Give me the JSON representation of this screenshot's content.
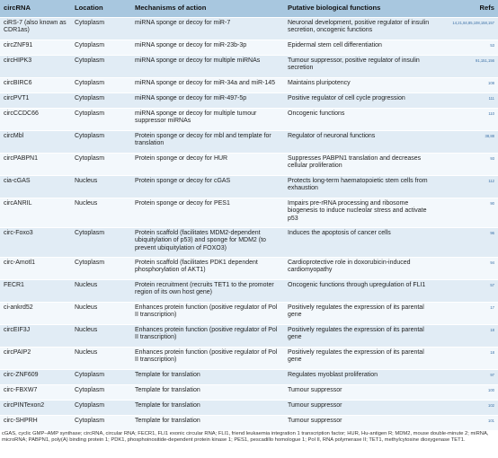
{
  "table": {
    "headers": {
      "circrna": "circRNA",
      "location": "Location",
      "mechanism": "Mechanisms of action",
      "function": "Putative biological functions",
      "refs": "Refs"
    },
    "rows": [
      {
        "circrna": "ciRS-7 (also known as CDR1as)",
        "location": "Cytoplasm",
        "mechanism": "miRNA sponge or decoy for miR-7",
        "function": "Neuronal development, positive regulator of insulin secretion, oncogenic functions",
        "refs": "14,21,84,85,108,158,157"
      },
      {
        "circrna": "circZNF91",
        "location": "Cytoplasm",
        "mechanism": "miRNA sponge or decoy for miR-23b-3p",
        "function": "Epidermal stem cell differentiation",
        "refs": "53"
      },
      {
        "circrna": "circHIPK3",
        "location": "Cytoplasm",
        "mechanism": "miRNA sponge or decoy for multiple miRNAs",
        "function": "Tumour suppressor, positive regulator of insulin secretion",
        "refs": "91,151,156"
      },
      {
        "circrna": "circBIRC6",
        "location": "Cytoplasm",
        "mechanism": "miRNA sponge or decoy for miR-34a and miR-145",
        "function": "Maintains pluripotency",
        "refs": "108"
      },
      {
        "circrna": "circPVT1",
        "location": "Cytoplasm",
        "mechanism": "miRNA sponge or decoy for miR-497-5p",
        "function": "Positive regulator of cell cycle progression",
        "refs": "111"
      },
      {
        "circrna": "circCCDC66",
        "location": "Cytoplasm",
        "mechanism": "miRNA sponge or decoy for multiple tumour suppressor miRNAs",
        "function": "Oncogenic functions",
        "refs": "110"
      },
      {
        "circrna": "circMbl",
        "location": "Cytoplasm",
        "mechanism": "Protein sponge or decoy for mbl and template for translation",
        "function": "Regulator of neuronal functions",
        "refs": "38,88"
      },
      {
        "circrna": "circPABPN1",
        "location": "Cytoplasm",
        "mechanism": "Protein sponge or decoy for HUR",
        "function": "Suppresses PABPN1 translation and decreases cellular proliferation",
        "refs": "93"
      },
      {
        "circrna": "cia-cGAS",
        "location": "Nucleus",
        "mechanism": "Protein sponge or decoy for cGAS",
        "function": "Protects long-term haematopoietic stem cells from exhaustion",
        "refs": "112"
      },
      {
        "circrna": "circANRIL",
        "location": "Nucleus",
        "mechanism": "Protein sponge or decoy for PES1",
        "function": "Impairs pre-rRNA processing and ribosome biogenesis to induce nucleolar stress and activate p53",
        "refs": "90"
      },
      {
        "circrna": "circ-Foxo3",
        "location": "Cytoplasm",
        "mechanism": "Protein scaffold (facilitates MDM2-dependent ubiquitylation of p53) and sponge for MDM2 (to prevent ubiquitylation of FOXO3)",
        "function": "Induces the apoptosis of cancer cells",
        "refs": "96"
      },
      {
        "circrna": "circ-Amotl1",
        "location": "Cytoplasm",
        "mechanism": "Protein scaffold (facilitates PDK1 dependent phosphorylation of AKT1)",
        "function": "Cardioprotective role in doxorubicin-induced cardiomyopathy",
        "refs": "94"
      },
      {
        "circrna": "FECR1",
        "location": "Nucleus",
        "mechanism": "Protein recruitment (recruits TET1 to the promoter region of its own host gene)",
        "function": "Oncogenic functions through upregulation of FLI1",
        "refs": "57"
      },
      {
        "circrna": "ci-ankrd52",
        "location": "Nucleus",
        "mechanism": "Enhances protein function (positive regulator of Pol II transcription)",
        "function": "Positively regulates the expression of its parental gene",
        "refs": "17"
      },
      {
        "circrna": "circEIF3J",
        "location": "Nucleus",
        "mechanism": "Enhances protein function (positive regulator of Pol II transcription)",
        "function": "Positively regulates the expression of its parental gene",
        "refs": "18"
      },
      {
        "circrna": "circPAIP2",
        "location": "Nucleus",
        "mechanism": "Enhances protein function (positive regulator of Pol II transcription)",
        "function": "Positively regulates the expression of its parental gene",
        "refs": "18"
      },
      {
        "circrna": "circ-ZNF609",
        "location": "Cytoplasm",
        "mechanism": "Template for translation",
        "function": "Regulates myoblast proliferation",
        "refs": "97"
      },
      {
        "circrna": "circ-FBXW7",
        "location": "Cytoplasm",
        "mechanism": "Template for translation",
        "function": "Tumour suppressor",
        "refs": "100"
      },
      {
        "circrna": "circPINTexon2",
        "location": "Cytoplasm",
        "mechanism": "Template for translation",
        "function": "Tumour suppressor",
        "refs": "102"
      },
      {
        "circrna": "circ-SHPRH",
        "location": "Cytoplasm",
        "mechanism": "Template for translation",
        "function": "Tumour suppressor",
        "refs": "101"
      }
    ]
  },
  "footnote": "cGAS, cyclic GMP–AMP synthase; circRNA, circular RNA; FECR1, FLI1 exonic circular RNA; FLI1, friend leukaemia integration 1 transcription factor; HUR, Hu-antigen R; MDM2, mouse double-minute 2; miRNA, microRNA; PABPN1, poly(A) binding protein 1; PDK1, phosphoinositide-dependent protein kinase 1; PES1, pescadillo homologue 1; Pol II, RNA polymerase II; TET1, methylcytosine dioxygenase TET1.",
  "colors": {
    "header": "#a8c7df",
    "row_dark": "#e1ecf5",
    "row_light": "#f3f8fc",
    "refs_link": "#3a6fa6"
  }
}
